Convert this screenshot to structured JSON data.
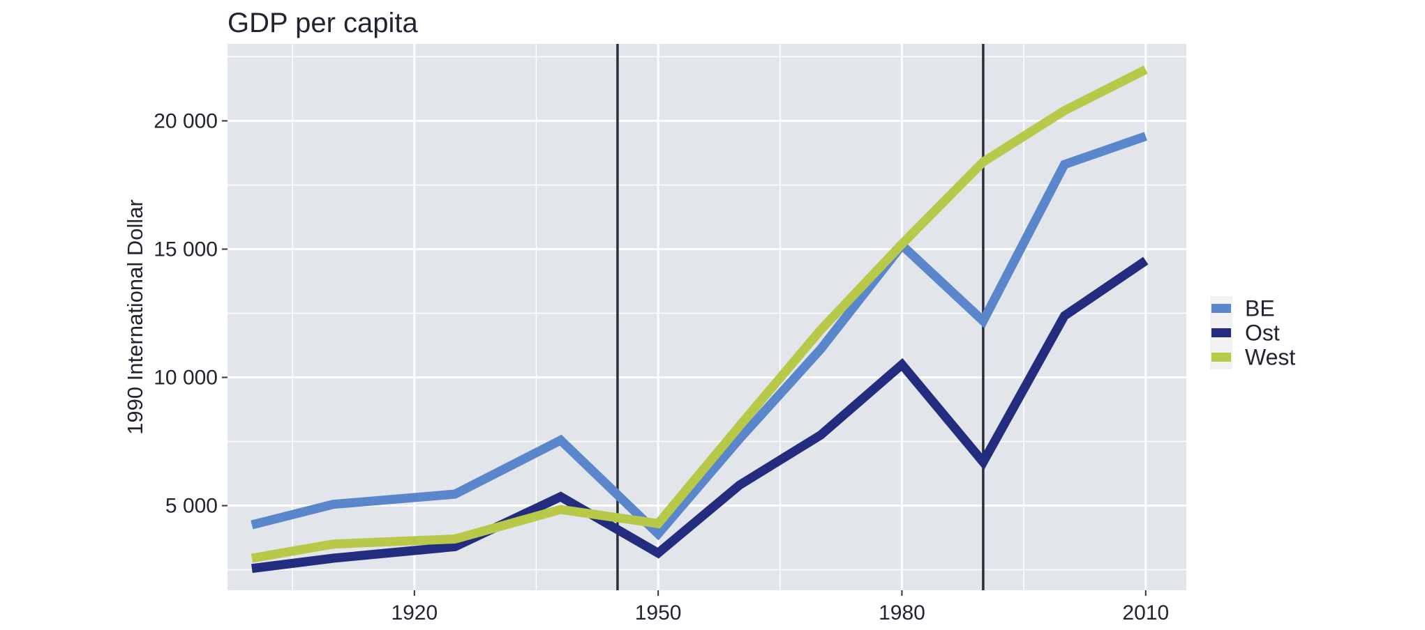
{
  "chart_data": {
    "type": "line",
    "title": "GDP per capita",
    "xlabel": "",
    "ylabel": "1990 International Dollar",
    "xlim": [
      1897,
      2015
    ],
    "ylim": [
      1700,
      23000
    ],
    "x_ticks": [
      1920,
      1950,
      1980,
      2010
    ],
    "x_minor_ticks": [
      1905,
      1935,
      1965,
      1995
    ],
    "y_ticks": [
      5000,
      10000,
      15000,
      20000
    ],
    "y_tick_labels": [
      "5 000",
      "10 000",
      "15 000",
      "20 000"
    ],
    "y_minor_ticks": [
      2500,
      7500,
      12500,
      17500,
      22500
    ],
    "grid": true,
    "panel_background": "#e2e5e9",
    "grid_color": "#ffffff",
    "vertical_markers": [
      1945,
      1990
    ],
    "vertical_marker_color": "#2a2d3a",
    "legend_position": "right",
    "series": [
      {
        "name": "BE",
        "color": "#5a86cc",
        "x": [
          1900,
          1910,
          1925,
          1938,
          1950,
          1960,
          1970,
          1980,
          1990,
          2000,
          2010
        ],
        "values": [
          4250,
          5050,
          5450,
          7550,
          3900,
          7600,
          11100,
          15150,
          12200,
          18300,
          19400
        ]
      },
      {
        "name": "Ost",
        "color": "#232c7e",
        "x": [
          1900,
          1910,
          1925,
          1938,
          1950,
          1960,
          1970,
          1980,
          1990,
          2000,
          2010
        ],
        "values": [
          2550,
          2950,
          3400,
          5350,
          3150,
          5800,
          7750,
          10500,
          6700,
          12400,
          14550
        ]
      },
      {
        "name": "West",
        "color": "#b8c848",
        "x": [
          1900,
          1910,
          1925,
          1938,
          1950,
          1960,
          1970,
          1980,
          1990,
          2000,
          2010
        ],
        "values": [
          2950,
          3500,
          3700,
          4850,
          4300,
          8100,
          11850,
          15200,
          18400,
          20400,
          22000
        ]
      }
    ]
  }
}
